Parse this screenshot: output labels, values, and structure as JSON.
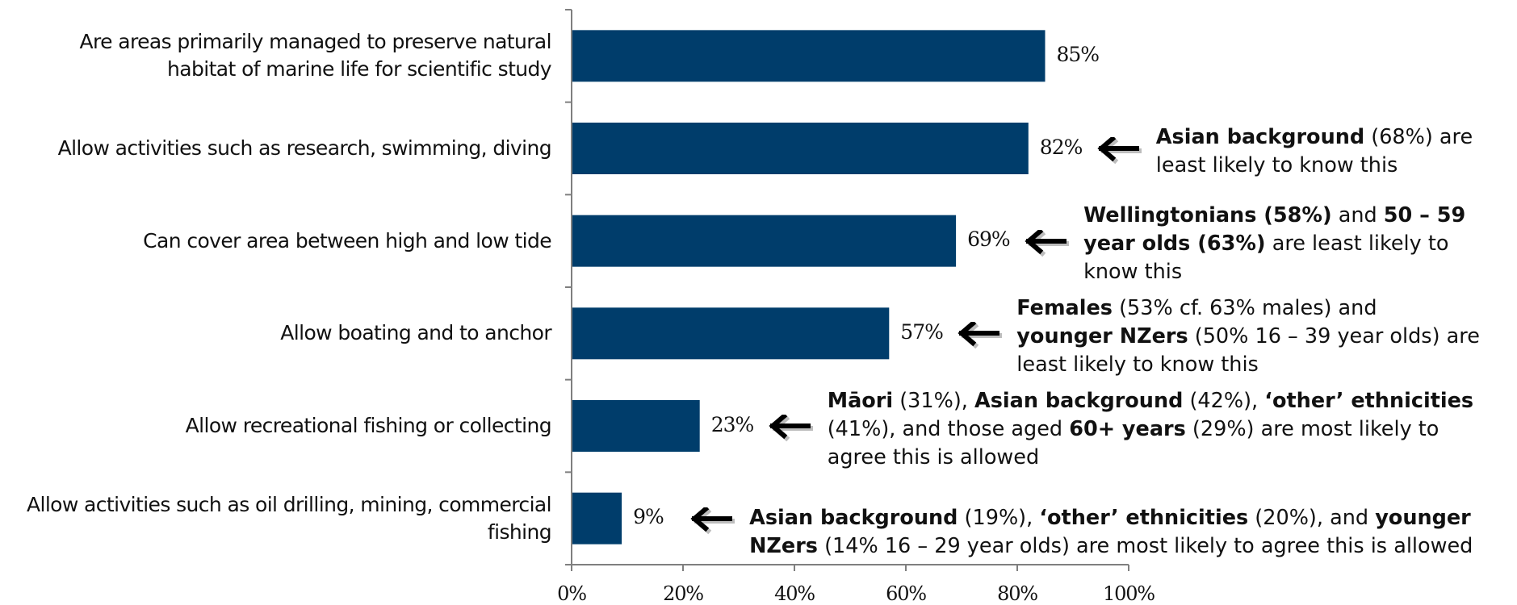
{
  "chart_data": {
    "type": "bar",
    "orientation": "horizontal",
    "categories": [
      "Are areas primarily managed to preserve natural habitat of marine life for scientific study",
      "Allow activities such as research, swimming, diving",
      "Can cover area between high and low tide",
      "Allow boating and to anchor",
      "Allow recreational fishing or collecting",
      "Allow activities such as oil drilling, mining, commercial fishing"
    ],
    "values": [
      85,
      82,
      69,
      57,
      23,
      9
    ],
    "data_labels": [
      "85%",
      "82%",
      "69%",
      "57%",
      "23%",
      "9%"
    ],
    "xlim": [
      0,
      100
    ],
    "x_ticks": [
      "0%",
      "20%",
      "40%",
      "60%",
      "80%",
      "100%"
    ],
    "bar_color": "#003d6b",
    "grid": false,
    "annotations": [
      {
        "bar": 1,
        "parts": [
          {
            "text": "Asian background",
            "bold": true
          },
          {
            "text": " (68%) are",
            "bold": false
          },
          {
            "text": "least likely to know this",
            "bold": false,
            "br": true
          }
        ]
      },
      {
        "bar": 2,
        "parts": [
          {
            "text": "Wellingtonians (58%)",
            "bold": true
          },
          {
            "text": " and ",
            "bold": false
          },
          {
            "text": "50 – 59",
            "bold": true
          },
          {
            "text": "year olds (63%)",
            "bold": true,
            "br": true
          },
          {
            "text": " are least likely to",
            "bold": false
          },
          {
            "text": "know this",
            "bold": false,
            "br": true
          }
        ]
      },
      {
        "bar": 3,
        "parts": [
          {
            "text": "Females",
            "bold": true
          },
          {
            "text": " (53% cf. 63% males) and",
            "bold": false
          },
          {
            "text": "younger NZers",
            "bold": true,
            "br": true
          },
          {
            "text": " (50% 16 – 39 year olds) are",
            "bold": false
          },
          {
            "text": "least likely to know this",
            "bold": false,
            "br": true
          }
        ]
      },
      {
        "bar": 4,
        "parts": [
          {
            "text": "Māori",
            "bold": true
          },
          {
            "text": " (31%), ",
            "bold": false
          },
          {
            "text": "Asian background",
            "bold": true
          },
          {
            "text": " (42%), ",
            "bold": false
          },
          {
            "text": "‘other’ ethnicities",
            "bold": true
          },
          {
            "text": "(41%), and those aged ",
            "bold": false,
            "br": true
          },
          {
            "text": "60+ years",
            "bold": true
          },
          {
            "text": " (29%) are most likely to",
            "bold": false
          },
          {
            "text": "agree this is allowed",
            "bold": false,
            "br": true
          }
        ]
      },
      {
        "bar": 5,
        "parts": [
          {
            "text": "Asian background",
            "bold": true
          },
          {
            "text": " (19%), ",
            "bold": false
          },
          {
            "text": "‘other’ ethnicities",
            "bold": true
          },
          {
            "text": " (20%), and ",
            "bold": false
          },
          {
            "text": "younger",
            "bold": true
          },
          {
            "text": "NZers",
            "bold": true,
            "br": true
          },
          {
            "text": " (14% 16 – 29 year olds) are most likely to agree this is allowed",
            "bold": false
          }
        ]
      }
    ]
  }
}
